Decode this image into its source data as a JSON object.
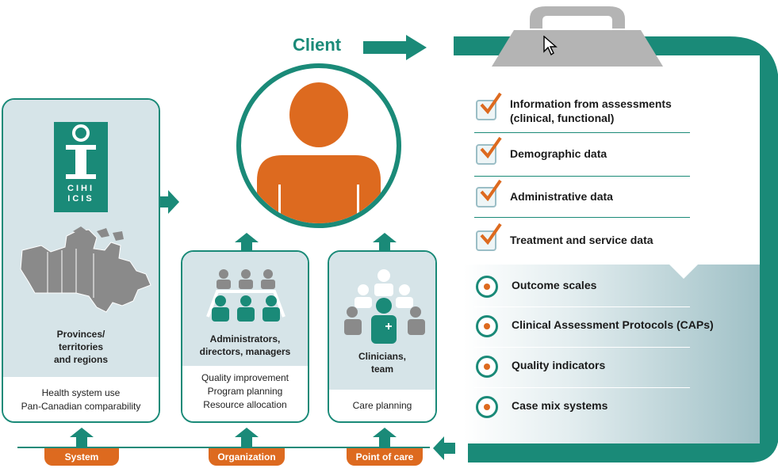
{
  "client": {
    "label": "Client"
  },
  "system_card": {
    "logo_lines": [
      "CIHI",
      "ICIS"
    ],
    "title": [
      "Provinces/",
      "territories",
      "and regions"
    ],
    "uses": [
      "Health system use",
      "Pan-Canadian comparability"
    ],
    "tab": "System"
  },
  "org_card": {
    "title": [
      "Administrators,",
      "directors, managers"
    ],
    "uses": [
      "Quality improvement",
      "Program planning",
      "Resource allocation"
    ],
    "tab": "Organization"
  },
  "care_card": {
    "title": [
      "Clinicians,",
      "team"
    ],
    "uses": [
      "Care planning"
    ],
    "tab": "Point of care"
  },
  "clipboard": {
    "inputs": [
      [
        "Information from assessments",
        "(clinical, functional)"
      ],
      [
        "Demographic data"
      ],
      [
        "Administrative data"
      ],
      [
        "Treatment and service data"
      ]
    ],
    "outputs": [
      "Outcome scales",
      "Clinical Assessment Protocols (CAPs)",
      "Quality indicators",
      "Case mix systems"
    ]
  },
  "colors": {
    "teal": "#1a8a78",
    "orange": "#dd6a1f",
    "light_blue": "#d6e4e8",
    "grey": "#9a9a9a"
  }
}
